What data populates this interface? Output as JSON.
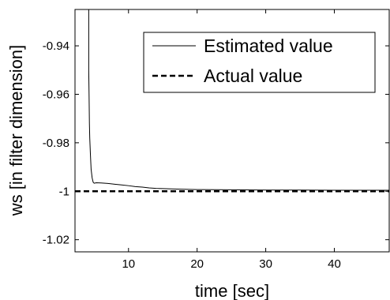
{
  "chart_data": {
    "type": "line",
    "xlabel": "time [sec]",
    "ylabel": "ws [in filter dimension]",
    "xlim": [
      2.2,
      48
    ],
    "ylim": [
      -1.025,
      -0.925
    ],
    "xticks": [
      10,
      20,
      30,
      40
    ],
    "xtick_labels": [
      "10",
      "20",
      "30",
      "40"
    ],
    "yticks": [
      -0.94,
      -0.96,
      -0.98,
      -1.0,
      -1.02
    ],
    "ytick_labels": [
      "-0.94",
      "-0.96",
      "-0.98",
      "-1",
      "-1.02"
    ],
    "grid": false,
    "legend_position": "top-right",
    "series": [
      {
        "name": "Estimated value",
        "style": "solid",
        "color": "#000000",
        "x": [
          4.2,
          4.2,
          4.25,
          4.3,
          4.35,
          4.45,
          4.55,
          4.7,
          4.85,
          5.0,
          5.3,
          6.0,
          7.0,
          8.0,
          9.0,
          10.0,
          11.0,
          12.0,
          13.0,
          14.0,
          15.0,
          17.0,
          20.0,
          25.0,
          30.0,
          35.0,
          40.0,
          45.0,
          48.0
        ],
        "y": [
          -0.925,
          -0.95,
          -0.96,
          -0.972,
          -0.978,
          -0.985,
          -0.991,
          -0.9945,
          -0.9963,
          -0.9967,
          -0.9965,
          -0.9966,
          -0.9968,
          -0.9971,
          -0.9974,
          -0.9977,
          -0.9981,
          -0.9983,
          -0.9986,
          -0.9988,
          -0.9989,
          -0.9991,
          -0.9993,
          -0.9994,
          -0.9995,
          -0.9995,
          -0.9996,
          -0.9996,
          -0.9996
        ]
      },
      {
        "name": "Actual value",
        "style": "dashed",
        "color": "#000000",
        "x": [
          2.2,
          48
        ],
        "y": [
          -1.0,
          -1.0
        ]
      }
    ]
  }
}
